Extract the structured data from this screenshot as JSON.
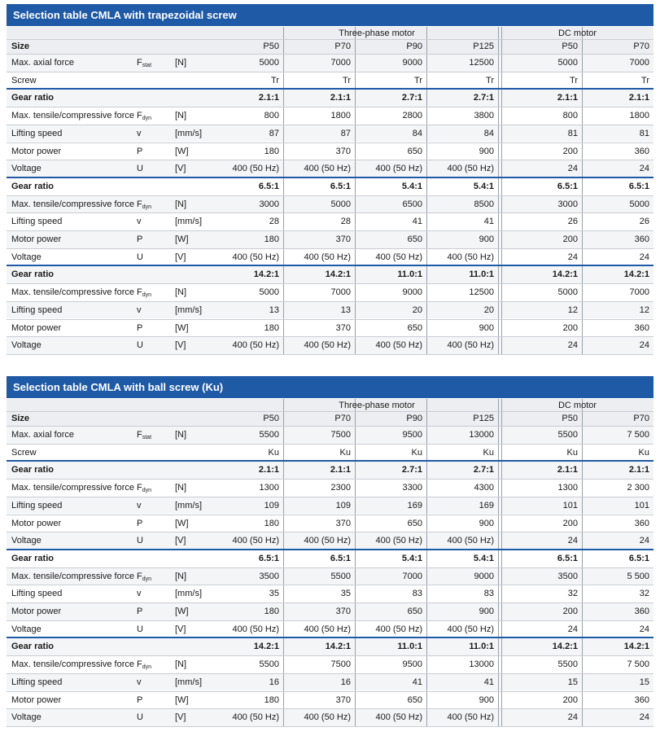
{
  "tables": [
    {
      "title": "Selection table CMLA with trapezoidal screw",
      "groups": [
        "Three-phase motor",
        "DC motor"
      ],
      "size_label": "Size",
      "sizes": [
        "P50",
        "P70",
        "P90",
        "P125",
        "P50",
        "P70"
      ],
      "rows": [
        {
          "label": "Max. axial force",
          "symbol": "F",
          "sub": "stat",
          "unit": "[N]",
          "values": [
            5000,
            7000,
            9000,
            12500,
            5000,
            7000
          ]
        },
        {
          "label": "Screw",
          "values": [
            "Tr",
            "Tr",
            "Tr",
            "Tr",
            "Tr",
            "Tr"
          ]
        },
        {
          "label": "Gear ratio",
          "bold": true,
          "values": [
            "2.1:1",
            "2.1:1",
            "2.7:1",
            "2.7:1",
            "2.1:1",
            "2.1:1"
          ]
        },
        {
          "label": "Max. tensile/compressive force",
          "symbol": "F",
          "sub": "dyn",
          "unit": "[N]",
          "values": [
            800,
            1800,
            2800,
            3800,
            800,
            1800
          ]
        },
        {
          "label": "Lifting speed",
          "symbol": "v",
          "unit": "[mm/s]",
          "values": [
            87,
            87,
            84,
            84,
            81,
            81
          ]
        },
        {
          "label": "Motor power",
          "symbol": "P",
          "unit": "[W]",
          "values": [
            180,
            370,
            650,
            900,
            200,
            360
          ]
        },
        {
          "label": "Voltage",
          "symbol": "U",
          "unit": "[V]",
          "values": [
            "400 (50 Hz)",
            "400 (50 Hz)",
            "400 (50 Hz)",
            "400 (50 Hz)",
            24,
            24
          ]
        },
        {
          "label": "Gear ratio",
          "bold": true,
          "values": [
            "6.5:1",
            "6.5:1",
            "5.4:1",
            "5.4:1",
            "6.5:1",
            "6.5:1"
          ]
        },
        {
          "label": "Max. tensile/compressive force",
          "symbol": "F",
          "sub": "dyn",
          "unit": "[N]",
          "values": [
            3000,
            5000,
            6500,
            8500,
            3000,
            5000
          ]
        },
        {
          "label": "Lifting speed",
          "symbol": "v",
          "unit": "[mm/s]",
          "values": [
            28,
            28,
            41,
            41,
            26,
            26
          ]
        },
        {
          "label": "Motor power",
          "symbol": "P",
          "unit": "[W]",
          "values": [
            180,
            370,
            650,
            900,
            200,
            360
          ]
        },
        {
          "label": "Voltage",
          "symbol": "U",
          "unit": "[V]",
          "values": [
            "400 (50 Hz)",
            "400 (50 Hz)",
            "400 (50 Hz)",
            "400 (50 Hz)",
            24,
            24
          ]
        },
        {
          "label": "Gear ratio",
          "bold": true,
          "values": [
            "14.2:1",
            "14.2:1",
            "11.0:1",
            "11.0:1",
            "14.2:1",
            "14.2:1"
          ]
        },
        {
          "label": "Max. tensile/compressive force",
          "symbol": "F",
          "sub": "dyn",
          "unit": "[N]",
          "values": [
            5000,
            7000,
            9000,
            12500,
            5000,
            7000
          ]
        },
        {
          "label": "Lifting speed",
          "symbol": "v",
          "unit": "[mm/s]",
          "values": [
            13,
            13,
            20,
            20,
            12,
            12
          ]
        },
        {
          "label": "Motor power",
          "symbol": "P",
          "unit": "[W]",
          "values": [
            180,
            370,
            650,
            900,
            200,
            360
          ]
        },
        {
          "label": "Voltage",
          "symbol": "U",
          "unit": "[V]",
          "values": [
            "400 (50 Hz)",
            "400 (50 Hz)",
            "400 (50 Hz)",
            "400 (50 Hz)",
            24,
            24
          ]
        }
      ]
    },
    {
      "title": "Selection table CMLA with ball screw (Ku)",
      "groups": [
        "Three-phase motor",
        "DC motor"
      ],
      "size_label": "Size",
      "sizes": [
        "P50",
        "P70",
        "P90",
        "P125",
        "P50",
        "P70"
      ],
      "rows": [
        {
          "label": "Max. axial force",
          "symbol": "F",
          "sub": "stat",
          "unit": "[N]",
          "values": [
            5500,
            7500,
            9500,
            13000,
            5500,
            "7 500"
          ]
        },
        {
          "label": "Screw",
          "values": [
            "Ku",
            "Ku",
            "Ku",
            "Ku",
            "Ku",
            "Ku"
          ]
        },
        {
          "label": "Gear ratio",
          "bold": true,
          "values": [
            "2.1:1",
            "2.1:1",
            "2.7:1",
            "2.7:1",
            "2.1:1",
            "2.1:1"
          ]
        },
        {
          "label": "Max. tensile/compressive force",
          "symbol": "F",
          "sub": "dyn",
          "unit": "[N]",
          "values": [
            1300,
            2300,
            3300,
            4300,
            1300,
            "2 300"
          ]
        },
        {
          "label": "Lifting speed",
          "symbol": "v",
          "unit": "[mm/s]",
          "values": [
            109,
            109,
            169,
            169,
            101,
            101
          ]
        },
        {
          "label": "Motor power",
          "symbol": "P",
          "unit": "[W]",
          "values": [
            180,
            370,
            650,
            900,
            200,
            360
          ]
        },
        {
          "label": "Voltage",
          "symbol": "U",
          "unit": "[V]",
          "values": [
            "400 (50 Hz)",
            "400 (50 Hz)",
            "400 (50 Hz)",
            "400 (50 Hz)",
            24,
            24
          ]
        },
        {
          "label": "Gear ratio",
          "bold": true,
          "values": [
            "6.5:1",
            "6.5:1",
            "5.4:1",
            "5.4:1",
            "6.5:1",
            "6.5:1"
          ]
        },
        {
          "label": "Max. tensile/compressive force",
          "symbol": "F",
          "sub": "dyn",
          "unit": "[N]",
          "values": [
            3500,
            5500,
            7000,
            9000,
            3500,
            "5 500"
          ]
        },
        {
          "label": "Lifting speed",
          "symbol": "v",
          "unit": "[mm/s]",
          "values": [
            35,
            35,
            83,
            83,
            32,
            32
          ]
        },
        {
          "label": "Motor power",
          "symbol": "P",
          "unit": "[W]",
          "values": [
            180,
            370,
            650,
            900,
            200,
            360
          ]
        },
        {
          "label": "Voltage",
          "symbol": "U",
          "unit": "[V]",
          "values": [
            "400 (50 Hz)",
            "400 (50 Hz)",
            "400 (50 Hz)",
            "400 (50 Hz)",
            24,
            24
          ]
        },
        {
          "label": "Gear ratio",
          "bold": true,
          "values": [
            "14.2:1",
            "14.2:1",
            "11.0:1",
            "11.0:1",
            "14.2:1",
            "14.2:1"
          ]
        },
        {
          "label": "Max. tensile/compressive force",
          "symbol": "F",
          "sub": "dyn",
          "unit": "[N]",
          "values": [
            5500,
            7500,
            9500,
            13000,
            5500,
            "7 500"
          ]
        },
        {
          "label": "Lifting speed",
          "symbol": "v",
          "unit": "[mm/s]",
          "values": [
            16,
            16,
            41,
            41,
            15,
            15
          ]
        },
        {
          "label": "Motor power",
          "symbol": "P",
          "unit": "[W]",
          "values": [
            180,
            370,
            650,
            900,
            200,
            360
          ]
        },
        {
          "label": "Voltage",
          "symbol": "U",
          "unit": "[V]",
          "values": [
            "400 (50 Hz)",
            "400 (50 Hz)",
            "400 (50 Hz)",
            "400 (50 Hz)",
            24,
            24
          ]
        }
      ]
    }
  ]
}
